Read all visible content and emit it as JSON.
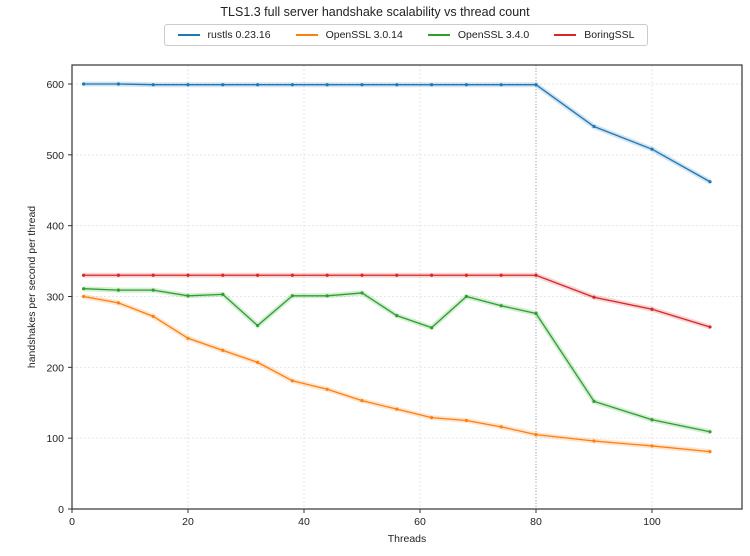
{
  "chart_data": {
    "type": "line",
    "title": "TLS1.3 full server handshake scalability vs thread count",
    "xlabel": "Threads",
    "ylabel": "handshakes per second per thread",
    "xlim": [
      0,
      115
    ],
    "ylim": [
      0,
      625
    ],
    "xticks": [
      0,
      20,
      40,
      60,
      80,
      100
    ],
    "yticks": [
      0,
      100,
      200,
      300,
      400,
      500,
      600
    ],
    "grid": true,
    "legend_position": "top-center",
    "vline_x": 80,
    "x": [
      2,
      8,
      14,
      20,
      26,
      32,
      38,
      44,
      50,
      56,
      62,
      68,
      74,
      80,
      90,
      100,
      110
    ],
    "series": [
      {
        "name": "rustls 0.23.16",
        "color": "#1f77b4",
        "values": [
          600,
          600,
          599,
          599,
          599,
          599,
          599,
          599,
          599,
          599,
          599,
          599,
          599,
          599,
          540,
          508,
          462
        ]
      },
      {
        "name": "OpenSSL 3.0.14",
        "color": "#ff7f0e",
        "values": [
          300,
          291,
          272,
          241,
          224,
          207,
          181,
          169,
          153,
          141,
          129,
          125,
          116,
          105,
          96,
          89,
          81
        ]
      },
      {
        "name": "OpenSSL 3.4.0",
        "color": "#2ca02c",
        "values": [
          311,
          309,
          309,
          301,
          303,
          259,
          301,
          301,
          305,
          273,
          256,
          300,
          287,
          276,
          152,
          126,
          109
        ]
      },
      {
        "name": "BoringSSL",
        "color": "#d62728",
        "values": [
          330,
          330,
          330,
          330,
          330,
          330,
          330,
          330,
          330,
          330,
          330,
          330,
          330,
          330,
          299,
          282,
          257
        ]
      }
    ]
  }
}
